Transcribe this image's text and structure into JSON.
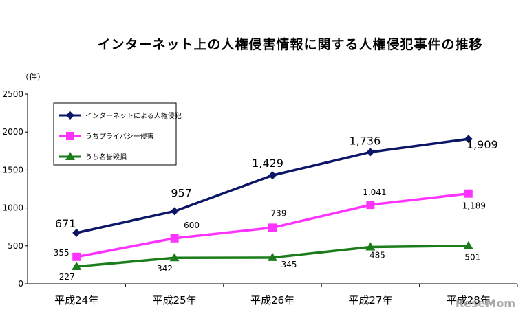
{
  "title": "インターネット上の人権侵害情報に関する人権侵犯事件の推移",
  "unit": "（件）",
  "watermark": "ReseMom",
  "chart_data": {
    "type": "line",
    "categories": [
      "平成24年",
      "平成25年",
      "平成26年",
      "平成27年",
      "平成28年"
    ],
    "ylim": [
      0,
      2500
    ],
    "yticks": [
      0,
      500,
      1000,
      1500,
      2000,
      2500
    ],
    "grid": false,
    "legend_position": "top-left",
    "series": [
      {
        "name": "インターネットによる人権侵犯",
        "values": [
          671,
          957,
          1429,
          1736,
          1909
        ],
        "labels": [
          "671",
          "957",
          "1,429",
          "1,736",
          "1,909"
        ],
        "color": "#0b1667",
        "marker": "diamond"
      },
      {
        "name": "うちプライバシー侵害",
        "values": [
          355,
          600,
          739,
          1041,
          1189
        ],
        "labels": [
          "355",
          "600",
          "739",
          "1,041",
          "1,189"
        ],
        "color": "#ff33ff",
        "marker": "square"
      },
      {
        "name": "うち名誉毀損",
        "values": [
          227,
          342,
          345,
          485,
          501
        ],
        "labels": [
          "227",
          "342",
          "345",
          "485",
          "501"
        ],
        "color": "#1a7d1a",
        "marker": "triangle"
      }
    ]
  }
}
